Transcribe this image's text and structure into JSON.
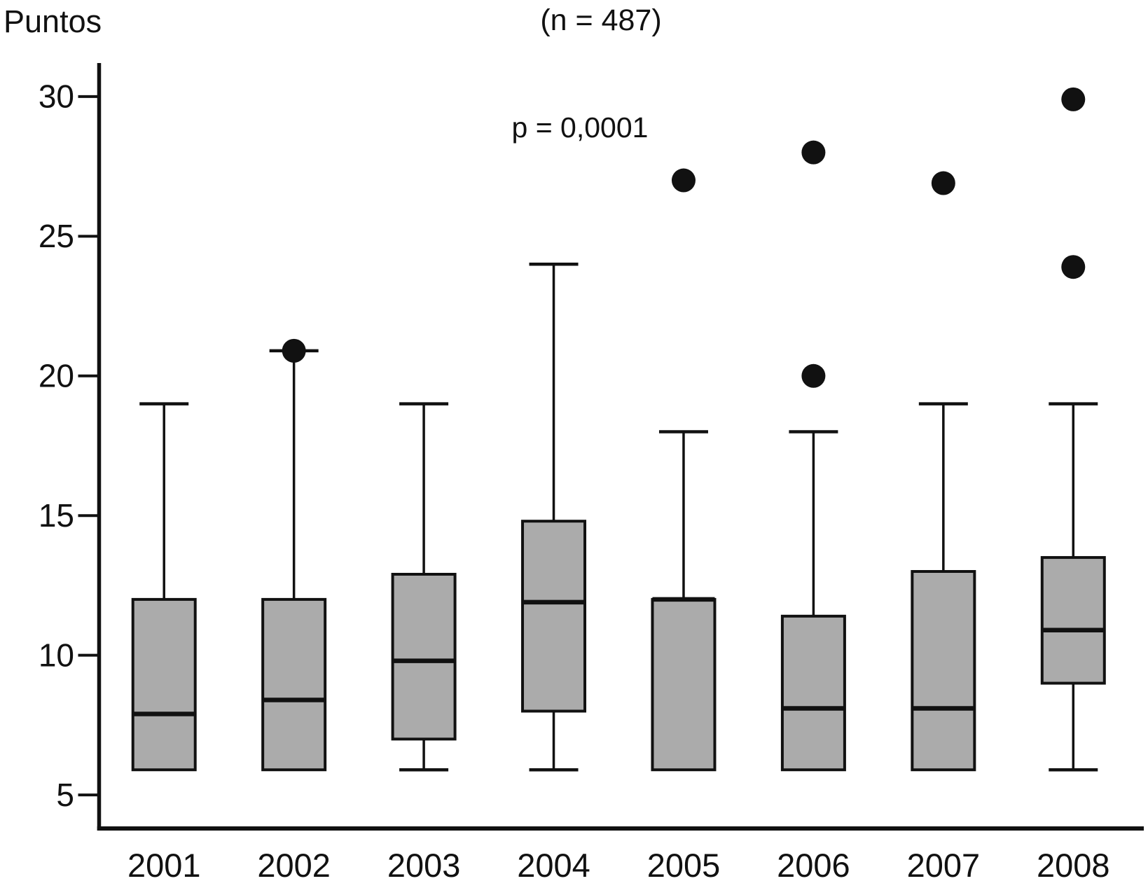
{
  "figure": {
    "y_axis_title": "Puntos",
    "sample_size_label": "(n = 487)",
    "p_value_label": "p = 0,0001"
  },
  "chart_data": {
    "type": "box",
    "title": "(n = 487)",
    "ylabel": "Puntos",
    "annotation": "p = 0,0001",
    "categories": [
      "2001",
      "2002",
      "2003",
      "2004",
      "2005",
      "2006",
      "2007",
      "2008"
    ],
    "y_ticks": [
      5,
      10,
      15,
      20,
      25,
      30
    ],
    "ylim": [
      3.8,
      31.2
    ],
    "grid": false,
    "legend_position": "none",
    "series": [
      {
        "year": "2001",
        "whisker_low": 5.9,
        "q1": 5.9,
        "median": 7.9,
        "q3": 12.0,
        "whisker_high": 19.0,
        "outliers": []
      },
      {
        "year": "2002",
        "whisker_low": 5.9,
        "q1": 5.9,
        "median": 8.4,
        "q3": 12.0,
        "whisker_high": 20.9,
        "outliers": [
          20.9
        ]
      },
      {
        "year": "2003",
        "whisker_low": 5.9,
        "q1": 7.0,
        "median": 9.8,
        "q3": 12.9,
        "whisker_high": 19.0,
        "outliers": []
      },
      {
        "year": "2004",
        "whisker_low": 5.9,
        "q1": 8.0,
        "median": 11.9,
        "q3": 14.8,
        "whisker_high": 24.0,
        "outliers": []
      },
      {
        "year": "2005",
        "whisker_low": 5.9,
        "q1": 5.9,
        "median": 12.0,
        "q3": 12.0,
        "whisker_high": 18.0,
        "outliers": [
          27.0
        ]
      },
      {
        "year": "2006",
        "whisker_low": 5.9,
        "q1": 5.9,
        "median": 8.1,
        "q3": 11.4,
        "whisker_high": 18.0,
        "outliers": [
          20.0,
          28.0
        ]
      },
      {
        "year": "2007",
        "whisker_low": 5.9,
        "q1": 5.9,
        "median": 8.1,
        "q3": 13.0,
        "whisker_high": 19.0,
        "outliers": [
          26.9
        ]
      },
      {
        "year": "2008",
        "whisker_low": 5.9,
        "q1": 9.0,
        "median": 10.9,
        "q3": 13.5,
        "whisker_high": 19.0,
        "outliers": [
          23.9,
          29.9
        ]
      }
    ],
    "colors": {
      "box_fill": "#ababab",
      "stroke": "#111111",
      "outlier_fill": "#111111",
      "background": "#ffffff"
    }
  }
}
